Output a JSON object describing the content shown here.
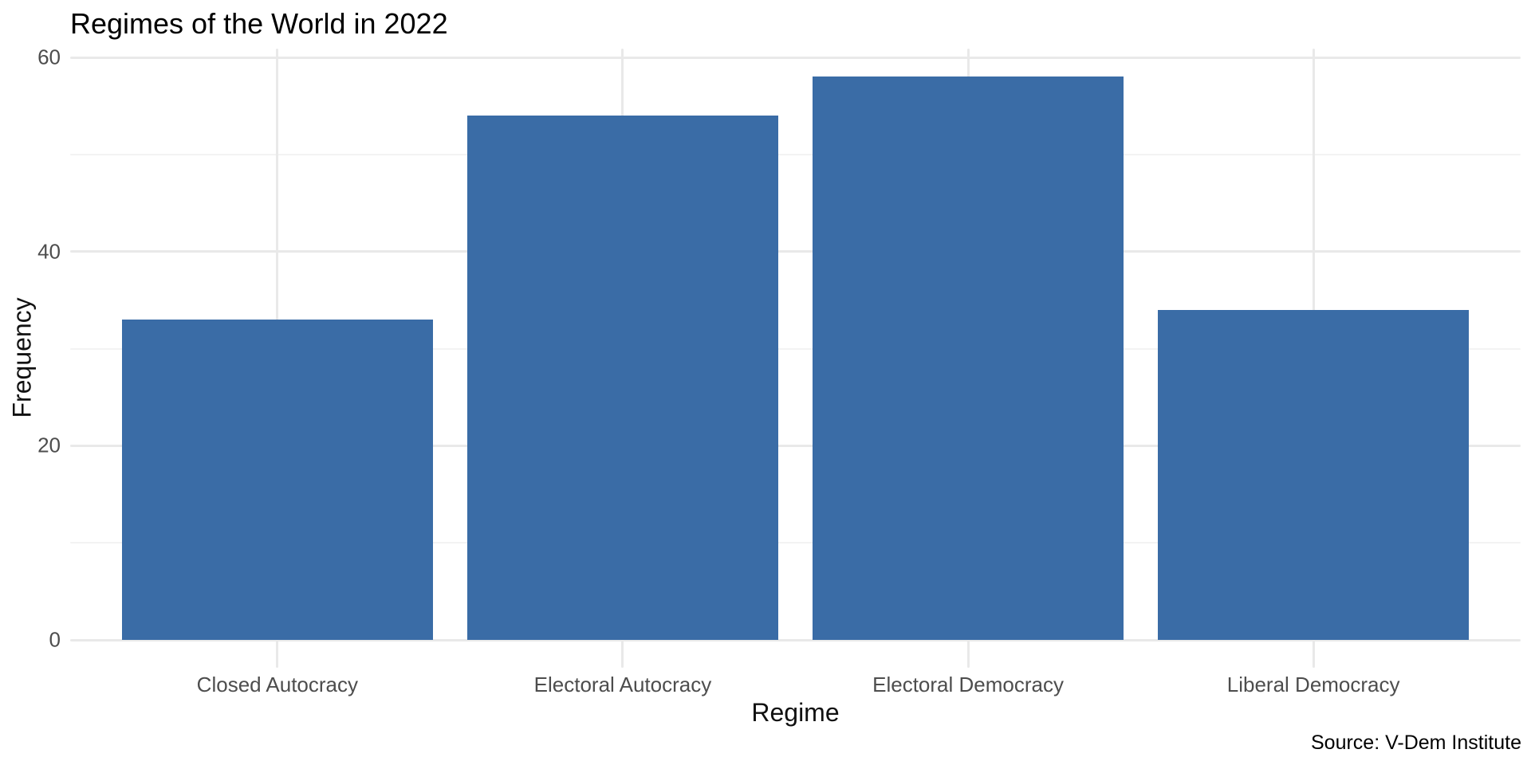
{
  "chart_data": {
    "type": "bar",
    "title": "Regimes of the World in 2022",
    "xlabel": "Regime",
    "ylabel": "Frequency",
    "caption": "Source: V-Dem Institute",
    "categories": [
      "Closed Autocracy",
      "Electoral Autocracy",
      "Electoral Democracy",
      "Liberal Democracy"
    ],
    "values": [
      33,
      54,
      58,
      34
    ],
    "ylim": [
      0,
      60
    ],
    "yticks_major": [
      0,
      20,
      40,
      60
    ],
    "yticks_minor": [
      10,
      30,
      50
    ],
    "grid": "major-and-minor",
    "legend": "none",
    "colors": {
      "bar_fill": "#3A6CA6",
      "grid_major": "#E9E9E9",
      "grid_minor": "#F3F3F3",
      "tick_label": "#4D4D4D",
      "title_text": "#000000",
      "background": "#FFFFFF"
    }
  }
}
